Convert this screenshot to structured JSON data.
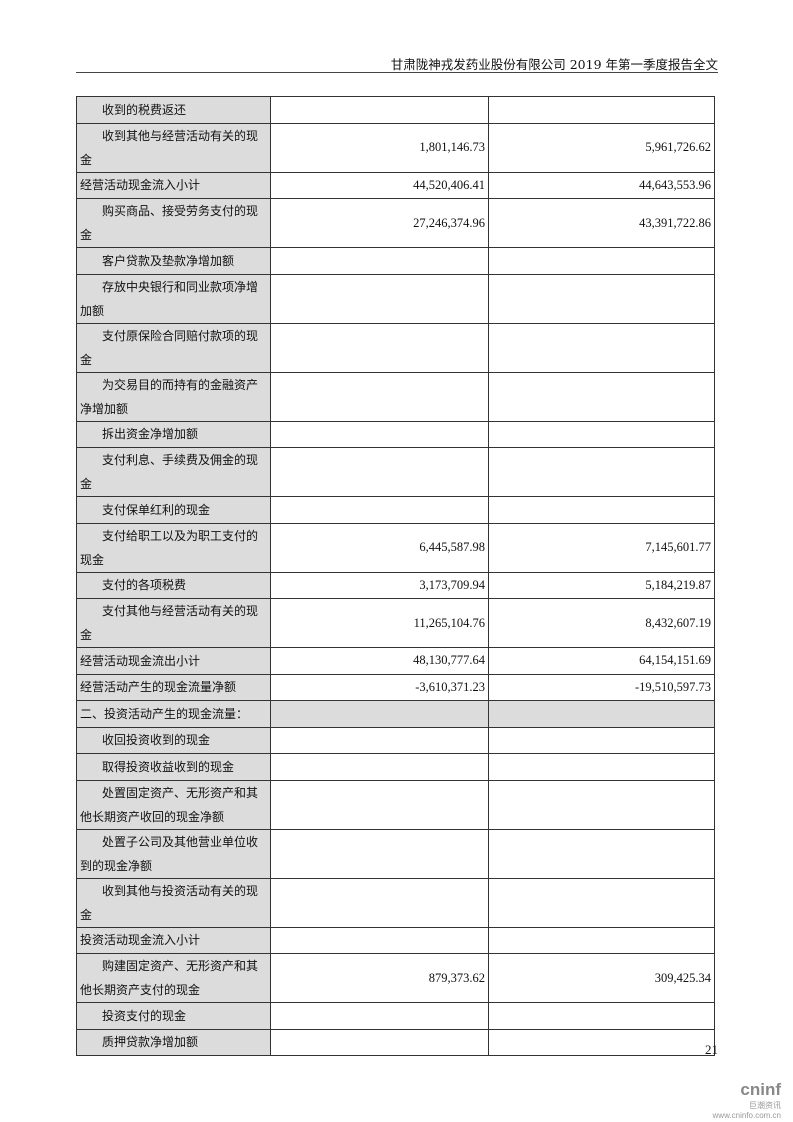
{
  "header": {
    "title": "甘肃陇神戎发药业股份有限公司 2019 年第一季度报告全文"
  },
  "rows": [
    {
      "label": "收到的税费返还",
      "current": "",
      "prior": ""
    },
    {
      "label": "收到其他与经营活动有关的现金",
      "current": "1,801,146.73",
      "prior": "5,961,726.62"
    },
    {
      "label": "经营活动现金流入小计",
      "current": "44,520,406.41",
      "prior": "44,643,553.96",
      "subtotal": true
    },
    {
      "label": "购买商品、接受劳务支付的现金",
      "current": "27,246,374.96",
      "prior": "43,391,722.86"
    },
    {
      "label": "客户贷款及垫款净增加额",
      "current": "",
      "prior": ""
    },
    {
      "label": "存放中央银行和同业款项净增加额",
      "current": "",
      "prior": ""
    },
    {
      "label": "支付原保险合同赔付款项的现金",
      "current": "",
      "prior": ""
    },
    {
      "label": "为交易目的而持有的金融资产净增加额",
      "current": "",
      "prior": ""
    },
    {
      "label": "拆出资金净增加额",
      "current": "",
      "prior": ""
    },
    {
      "label": "支付利息、手续费及佣金的现金",
      "current": "",
      "prior": ""
    },
    {
      "label": "支付保单红利的现金",
      "current": "",
      "prior": ""
    },
    {
      "label": "支付给职工以及为职工支付的现金",
      "current": "6,445,587.98",
      "prior": "7,145,601.77"
    },
    {
      "label": "支付的各项税费",
      "current": "3,173,709.94",
      "prior": "5,184,219.87"
    },
    {
      "label": "支付其他与经营活动有关的现金",
      "current": "11,265,104.76",
      "prior": "8,432,607.19"
    },
    {
      "label": "经营活动现金流出小计",
      "current": "48,130,777.64",
      "prior": "64,154,151.69",
      "subtotal": true
    },
    {
      "label": "经营活动产生的现金流量净额",
      "current": "-3,610,371.23",
      "prior": "-19,510,597.73",
      "subtotal": true
    },
    {
      "label": "二、投资活动产生的现金流量：",
      "current": "",
      "prior": "",
      "section": true
    },
    {
      "label": "收回投资收到的现金",
      "current": "",
      "prior": ""
    },
    {
      "label": "取得投资收益收到的现金",
      "current": "",
      "prior": ""
    },
    {
      "label": "处置固定资产、无形资产和其他长期资产收回的现金净额",
      "current": "",
      "prior": ""
    },
    {
      "label": "处置子公司及其他营业单位收到的现金净额",
      "current": "",
      "prior": ""
    },
    {
      "label": "收到其他与投资活动有关的现金",
      "current": "",
      "prior": ""
    },
    {
      "label": "投资活动现金流入小计",
      "current": "",
      "prior": "",
      "subtotal": true
    },
    {
      "label": "购建固定资产、无形资产和其他长期资产支付的现金",
      "current": "879,373.62",
      "prior": "309,425.34"
    },
    {
      "label": "投资支付的现金",
      "current": "",
      "prior": ""
    },
    {
      "label": "质押贷款净增加额",
      "current": "",
      "prior": ""
    }
  ],
  "footer": {
    "page_number": "21",
    "logo_text": "cninf",
    "logo_sub": "巨潮资讯",
    "logo_url": "www.cninfo.com.cn"
  }
}
